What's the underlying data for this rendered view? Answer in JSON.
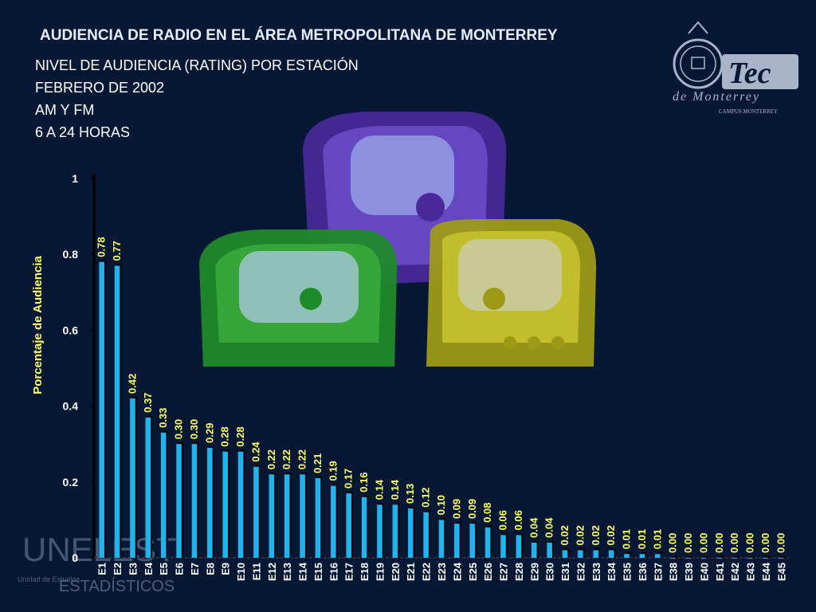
{
  "title": "AUDIENCIA DE RADIO EN EL ÁREA METROPOLITANA DE MONTERREY",
  "subtitle_lines": [
    "NIVEL DE AUDIENCIA (RATING) POR ESTACIÓN",
    "FEBRERO DE 2002",
    "AM Y FM",
    "6 A 24 HORAS"
  ],
  "logo": {
    "icon": "tec-de-monterrey-logo",
    "text_main": "Tec",
    "text_sub": "de Monterrey",
    "text_campus": "CAMPUS MONTERREY"
  },
  "watermark": {
    "icon": "unelest-logo",
    "text_main": "UNELEST",
    "text_small": "Unidad de Estudios",
    "text_large": "ESTADÍSTICOS"
  },
  "colors": {
    "background": "#071834",
    "bar": "#1fb4f0",
    "bar_label": "#ffff66",
    "axis_label": "#ffff66",
    "title": "#e8ecff"
  },
  "chart_data": {
    "type": "bar",
    "title": "",
    "xlabel": "",
    "ylabel": "Porcentaje de Audiencia",
    "ylim": [
      0,
      1
    ],
    "yticks": [
      0,
      0.2,
      0.4,
      0.6,
      0.8,
      1
    ],
    "ytick_labels": [
      "0",
      "0.2",
      "0.4",
      "0.6",
      "0.8",
      "1"
    ],
    "grid": false,
    "categories": [
      "E1",
      "E2",
      "E3",
      "E4",
      "E5",
      "E6",
      "E7",
      "E8",
      "E9",
      "E10",
      "E11",
      "E12",
      "E13",
      "E14",
      "E15",
      "E16",
      "E17",
      "E18",
      "E19",
      "E20",
      "E21",
      "E22",
      "E23",
      "E24",
      "E25",
      "E26",
      "E27",
      "E28",
      "E29",
      "E30",
      "E31",
      "E32",
      "E33",
      "E34",
      "E35",
      "E36",
      "E37",
      "E38",
      "E39",
      "E40",
      "E41",
      "E42",
      "E43",
      "E44",
      "E45"
    ],
    "values": [
      0.78,
      0.77,
      0.42,
      0.37,
      0.33,
      0.3,
      0.3,
      0.29,
      0.28,
      0.28,
      0.24,
      0.22,
      0.22,
      0.22,
      0.21,
      0.19,
      0.17,
      0.16,
      0.14,
      0.14,
      0.13,
      0.12,
      0.1,
      0.09,
      0.09,
      0.08,
      0.06,
      0.06,
      0.04,
      0.04,
      0.02,
      0.02,
      0.02,
      0.02,
      0.01,
      0.01,
      0.01,
      0.0,
      0.0,
      0.0,
      0.0,
      0.0,
      0.0,
      0.0,
      0.0
    ],
    "value_labels": [
      "0.78",
      "0.77",
      "0.42",
      "0.37",
      "0.33",
      "0.30",
      "0.30",
      "0.29",
      "0.28",
      "0.28",
      "0.24",
      "0.22",
      "0.22",
      "0.22",
      "0.21",
      "0.19",
      "0.17",
      "0.16",
      "0.14",
      "0.14",
      "0.13",
      "0.12",
      "0.10",
      "0.09",
      "0.09",
      "0.08",
      "0.06",
      "0.06",
      "0.04",
      "0.04",
      "0.02",
      "0.02",
      "0.02",
      "0.02",
      "0.01",
      "0.01",
      "0.01",
      "0.00",
      "0.00",
      "0.00",
      "0.00",
      "0.00",
      "0.00",
      "0.00",
      "0.00"
    ]
  }
}
